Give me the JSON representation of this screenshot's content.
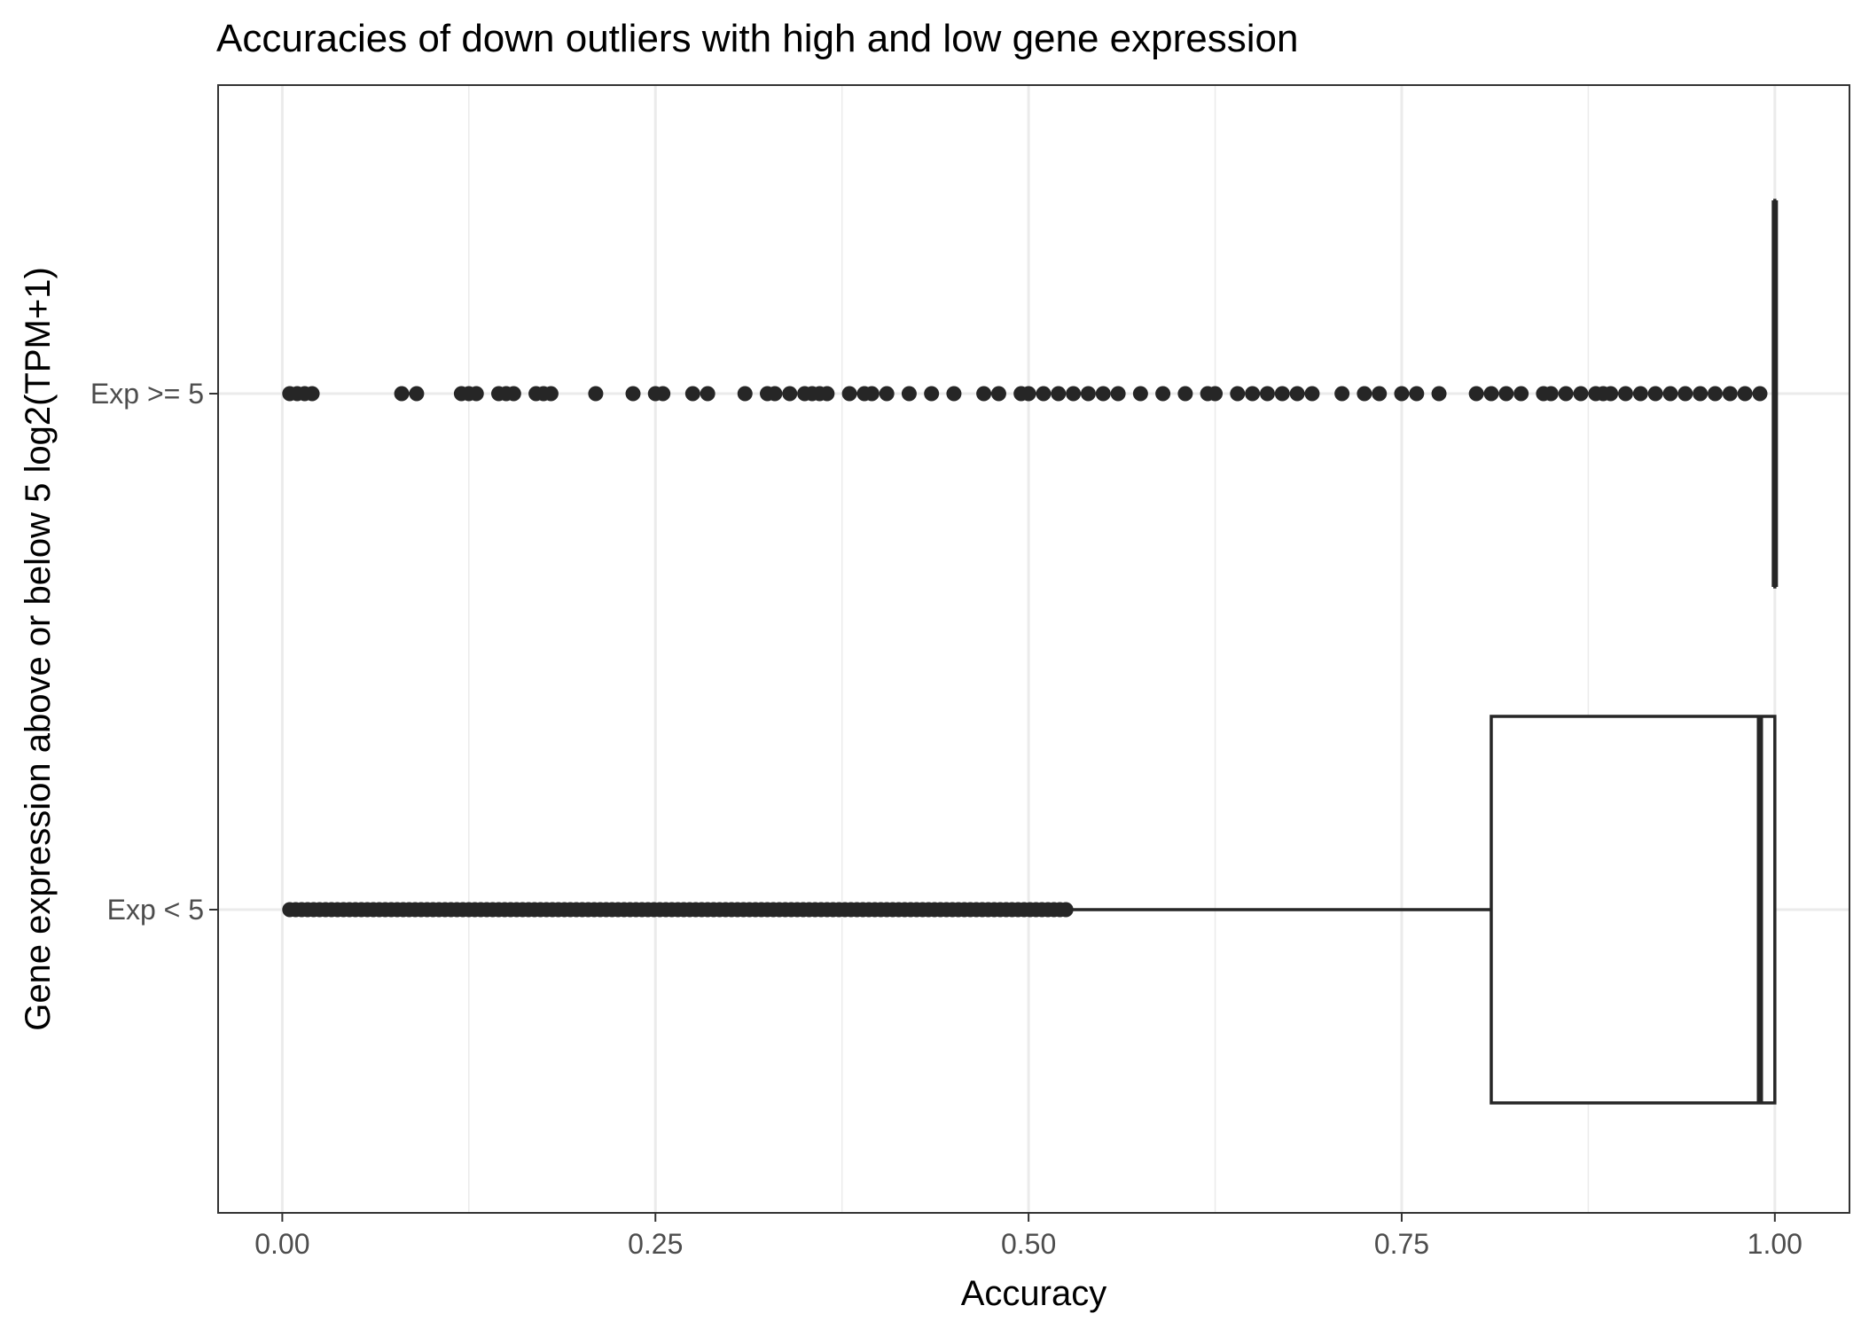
{
  "chart_data": {
    "type": "boxplot",
    "title": "Accuracies of down outliers with high and low gene expression",
    "xlabel": "Accuracy",
    "ylabel": "Gene expression above or below 5 log2(TPM+1)",
    "xlim": [
      -0.043,
      1.05
    ],
    "x_ticks": [
      0.0,
      0.25,
      0.5,
      0.75,
      1.0
    ],
    "x_tick_labels": [
      "0.00",
      "0.25",
      "0.50",
      "0.75",
      "1.00"
    ],
    "categories": [
      "Exp >= 5",
      "Exp < 5"
    ],
    "grid": true,
    "colors": {
      "ink": "#262626",
      "grid": "#ebebeb",
      "panel_border": "#333333",
      "background": "#ffffff"
    },
    "groups": [
      {
        "name": "Exp >= 5",
        "box": {
          "lower_whisker": 1.0,
          "q1": 1.0,
          "median": 1.0,
          "q3": 1.0,
          "upper_whisker": 1.0
        },
        "outliers": [
          0.005,
          0.01,
          0.015,
          0.02,
          0.08,
          0.09,
          0.12,
          0.125,
          0.13,
          0.145,
          0.15,
          0.155,
          0.17,
          0.175,
          0.18,
          0.21,
          0.235,
          0.25,
          0.255,
          0.275,
          0.285,
          0.31,
          0.325,
          0.33,
          0.34,
          0.35,
          0.355,
          0.36,
          0.365,
          0.38,
          0.39,
          0.395,
          0.405,
          0.42,
          0.435,
          0.45,
          0.47,
          0.48,
          0.495,
          0.5,
          0.51,
          0.52,
          0.53,
          0.54,
          0.55,
          0.56,
          0.575,
          0.59,
          0.605,
          0.62,
          0.625,
          0.64,
          0.65,
          0.66,
          0.67,
          0.68,
          0.69,
          0.71,
          0.725,
          0.735,
          0.75,
          0.76,
          0.775,
          0.8,
          0.81,
          0.82,
          0.83,
          0.845,
          0.85,
          0.86,
          0.87,
          0.88,
          0.885,
          0.89,
          0.9,
          0.91,
          0.92,
          0.93,
          0.94,
          0.95,
          0.96,
          0.97,
          0.98,
          0.99
        ]
      },
      {
        "name": "Exp < 5",
        "box": {
          "lower_whisker": 0.525,
          "q1": 0.81,
          "median": 0.99,
          "q3": 1.0,
          "upper_whisker": 1.0
        },
        "outlier_range": [
          0.005,
          0.525
        ]
      }
    ]
  }
}
